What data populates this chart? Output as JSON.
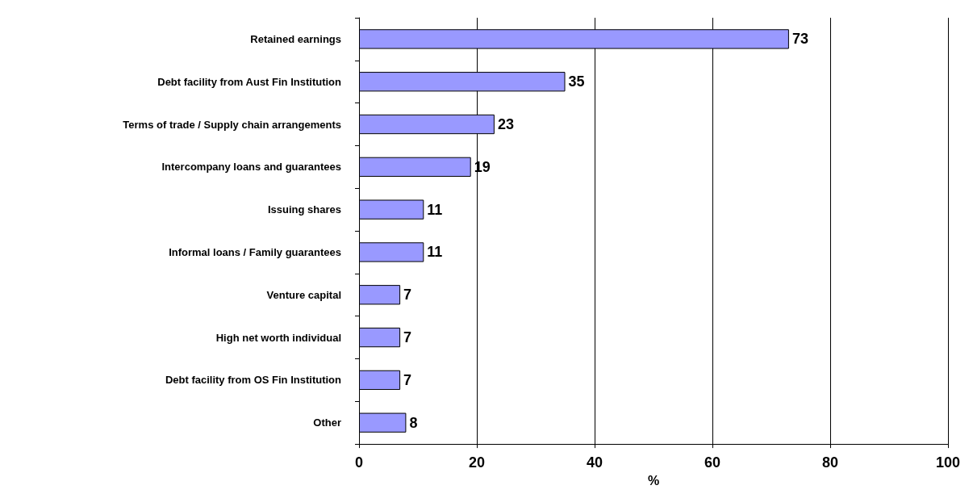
{
  "chart_data": {
    "type": "bar",
    "orientation": "horizontal",
    "xlabel": "%",
    "categories": [
      "Retained earnings",
      "Debt facility from Aust Fin Institution",
      "Terms of trade / Supply chain arrangements",
      "Intercompany loans and guarantees",
      "Issuing shares",
      "Informal loans / Family guarantees",
      "Venture capital",
      "High net worth individual",
      "Debt facility from OS Fin Institution",
      "Other"
    ],
    "values": [
      73,
      35,
      23,
      19,
      11,
      11,
      7,
      7,
      7,
      8
    ],
    "color": "#9999ff",
    "xlim": [
      0,
      100
    ],
    "xticks": [
      0,
      20,
      40,
      60,
      80,
      100
    ],
    "grid": "x",
    "data_labels": true
  }
}
